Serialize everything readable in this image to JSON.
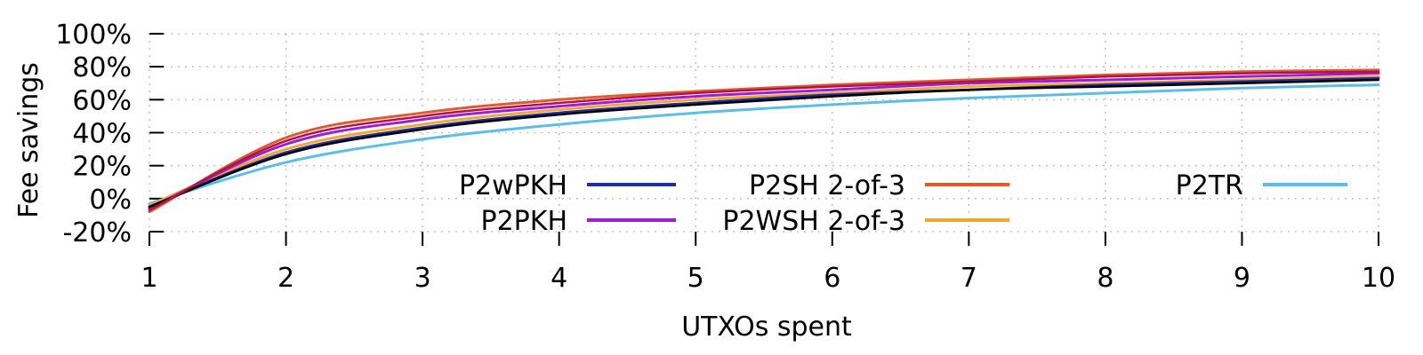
{
  "chart_data": {
    "type": "line",
    "title": "",
    "xlabel": "UTXOs spent",
    "ylabel": "Fee savings",
    "xlim": [
      1,
      10
    ],
    "ylim": [
      -20,
      100
    ],
    "x_ticks": [
      1,
      2,
      3,
      4,
      5,
      6,
      7,
      8,
      9,
      10
    ],
    "y_ticks": [
      -20,
      0,
      20,
      40,
      60,
      80,
      100
    ],
    "x_tick_labels": [
      "1",
      "2",
      "3",
      "4",
      "5",
      "6",
      "7",
      "8",
      "9",
      "10"
    ],
    "y_tick_labels": [
      "-20%",
      "0%",
      "20%",
      "40%",
      "60%",
      "80%",
      "100%"
    ],
    "grid": true,
    "legend_position": "inside-bottom",
    "x": [
      1,
      2,
      3,
      4,
      5,
      6,
      7,
      8,
      9,
      10
    ],
    "series": [
      {
        "name": "P2wPKH",
        "color": "#1f2f9e",
        "values": [
          -5,
          28,
          43,
          52,
          58,
          63,
          66,
          69,
          71,
          73
        ]
      },
      {
        "name": "P2PKH",
        "color": "#9a1fd6",
        "values": [
          -6,
          33,
          48,
          56,
          62,
          66,
          70,
          72,
          74,
          76
        ]
      },
      {
        "name": "P2SH 2-of-3",
        "color": "#e05a2b",
        "values": [
          -8,
          37,
          52,
          60,
          65,
          69,
          72,
          75,
          77,
          78
        ]
      },
      {
        "name": "P2WSH 2-of-3",
        "color": "#f0a830",
        "values": [
          -4,
          30,
          45,
          54,
          60,
          64,
          68,
          70,
          72,
          74
        ]
      },
      {
        "name": "P2TR",
        "color": "#5bbde8",
        "values": [
          -3,
          22,
          36,
          45,
          52,
          57,
          61,
          64,
          67,
          69
        ]
      }
    ],
    "extra_curves": [
      {
        "color": "#000000",
        "values": [
          -5,
          27,
          42,
          51,
          57,
          62,
          66,
          68,
          70,
          72
        ]
      },
      {
        "color": "#b0124a",
        "values": [
          -7,
          35,
          50,
          58,
          64,
          68,
          71,
          74,
          76,
          77
        ]
      }
    ]
  }
}
